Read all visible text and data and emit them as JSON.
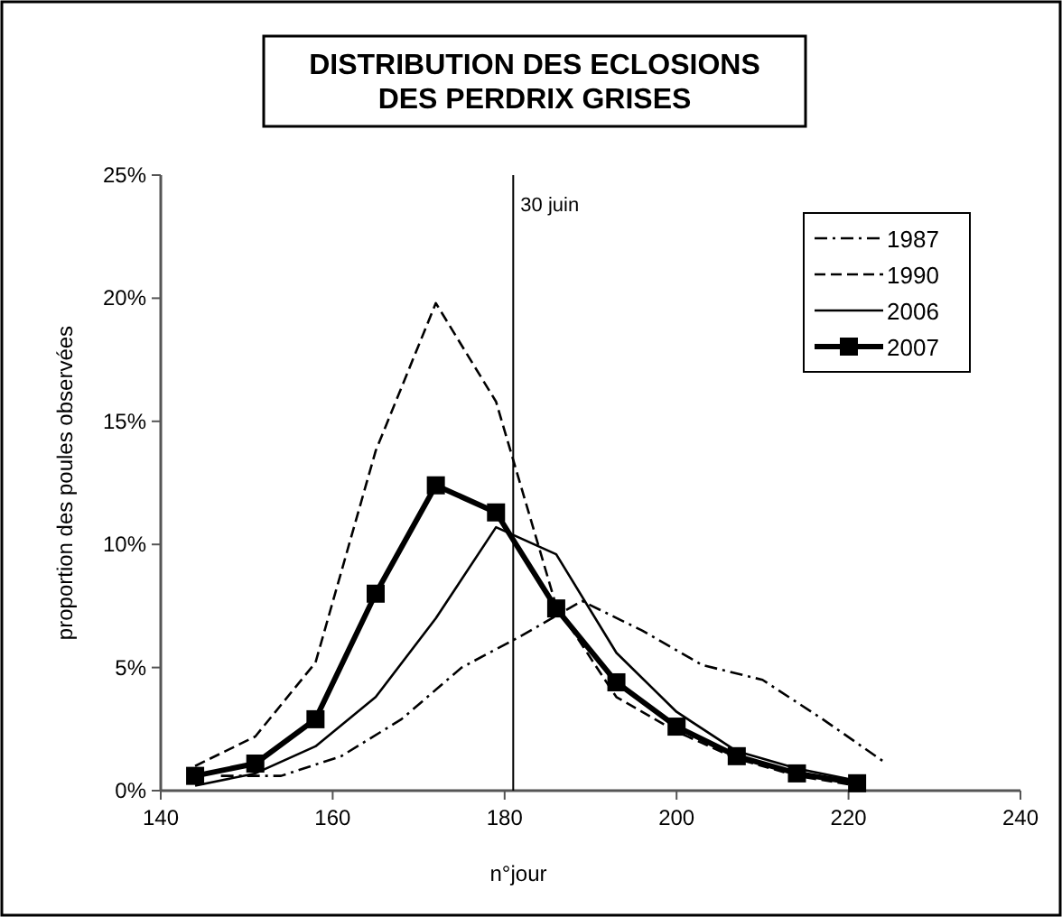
{
  "chart_data": {
    "type": "line",
    "title": "DISTRIBUTION DES ECLOSIONS\nDES PERDRIX GRISES",
    "xlabel": "n°jour",
    "ylabel": "proportion des poules observées",
    "xlim": [
      140,
      240
    ],
    "xticks": [
      140,
      160,
      180,
      200,
      220,
      240
    ],
    "ylim": [
      0,
      25
    ],
    "yticks": [
      {
        "value": 0,
        "label": "0%"
      },
      {
        "value": 5,
        "label": "5%"
      },
      {
        "value": 10,
        "label": "10%"
      },
      {
        "value": 15,
        "label": "15%"
      },
      {
        "value": 20,
        "label": "20%"
      },
      {
        "value": 25,
        "label": "25%"
      }
    ],
    "grid": false,
    "legend": "top right",
    "ref_lines": [
      {
        "axis": "x",
        "value": 181,
        "label": "30 juin",
        "color": "#000000"
      }
    ],
    "series": [
      {
        "name": "1987",
        "color": "#000000",
        "line_style": "dotted",
        "marker": "none",
        "x": [
          147,
          154,
          161,
          168,
          175,
          182,
          189,
          196,
          203,
          210,
          217,
          224
        ],
        "values": [
          0.6,
          0.6,
          1.4,
          2.9,
          5.0,
          6.3,
          7.7,
          6.5,
          5.1,
          4.5,
          2.9,
          1.2
        ]
      },
      {
        "name": "1990",
        "color": "#000000",
        "line_style": "dashed",
        "marker": "none",
        "x": [
          144,
          151,
          158,
          165,
          172,
          179,
          186,
          193,
          200,
          207,
          214,
          221
        ],
        "values": [
          1.0,
          2.2,
          5.2,
          13.8,
          19.8,
          15.8,
          7.5,
          3.8,
          2.4,
          1.3,
          0.6,
          0.2
        ]
      },
      {
        "name": "2006",
        "color": "#000000",
        "line_style": "solid",
        "marker": "none",
        "x": [
          144,
          151,
          158,
          165,
          172,
          179,
          186,
          193,
          200,
          207,
          214,
          221
        ],
        "values": [
          0.2,
          0.7,
          1.8,
          3.8,
          7.0,
          10.7,
          9.6,
          5.6,
          3.2,
          1.6,
          0.9,
          0.4
        ]
      },
      {
        "name": "2007",
        "color": "#000000",
        "line_style": "solid",
        "marker": "square",
        "x": [
          144,
          151,
          158,
          165,
          172,
          179,
          186,
          193,
          200,
          207,
          214,
          221
        ],
        "values": [
          0.6,
          1.1,
          2.9,
          8.0,
          12.4,
          11.3,
          7.4,
          4.4,
          2.6,
          1.4,
          0.7,
          0.3
        ]
      }
    ]
  }
}
